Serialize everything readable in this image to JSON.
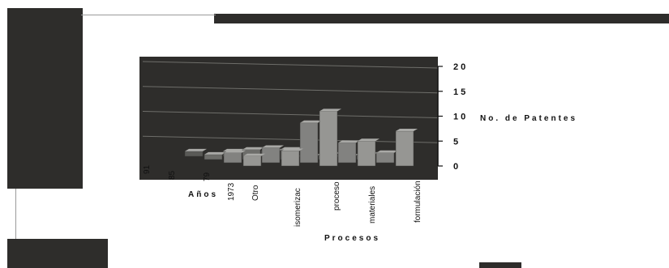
{
  "chart_data": {
    "type": "bar",
    "title": "",
    "xlabel": "Procesos",
    "ylabel": "No. de Patentes",
    "depth_label": "Años",
    "ylim": [
      0,
      20
    ],
    "yticks": [
      "0",
      "5",
      "10",
      "15",
      "20"
    ],
    "categories": [
      "Otro",
      "isomerizac",
      "proceso",
      "materiales",
      "formulación"
    ],
    "years": [
      "1973",
      "79",
      "85",
      "91"
    ],
    "series": [
      {
        "values": [
          1,
          1,
          1,
          0,
          0
        ]
      },
      {
        "values": [
          1,
          2,
          2,
          1,
          1
        ]
      },
      {
        "values": [
          2,
          3,
          8,
          4,
          2
        ]
      },
      {
        "values": [
          2,
          3,
          11,
          5,
          7
        ]
      }
    ],
    "grid": true,
    "colors": {
      "background": "#ffffff",
      "wall": "#2e2d2b",
      "bars": "#7a7a78",
      "text": "#111111"
    }
  }
}
